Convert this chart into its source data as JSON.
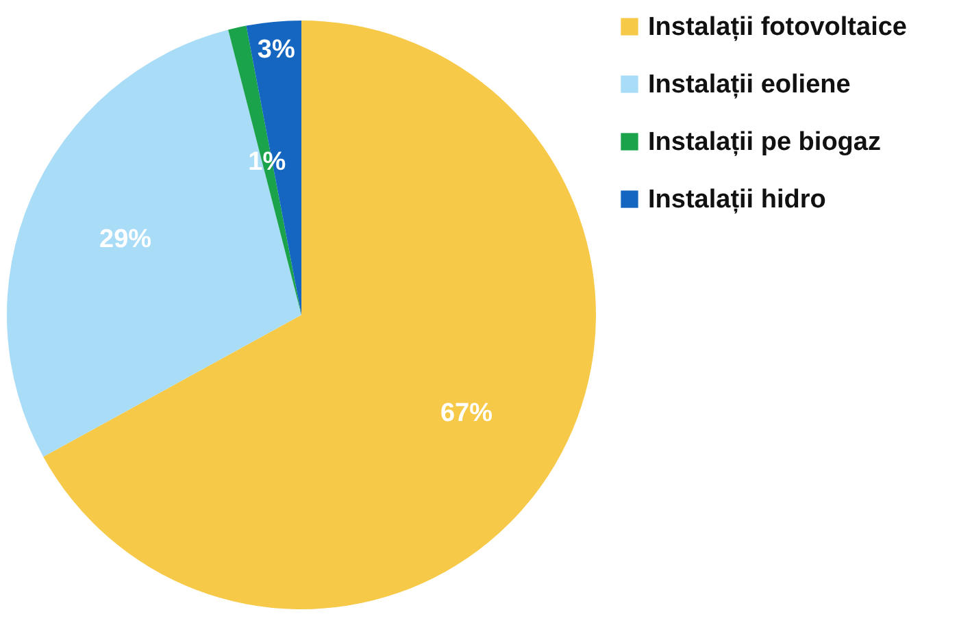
{
  "chart_data": {
    "type": "pie",
    "categories": [
      "Instalații fotovoltaice",
      "Instalații eoliene",
      "Instalații pe biogaz",
      "Instalații hidro"
    ],
    "values": [
      67,
      29,
      1,
      3
    ],
    "value_labels": [
      "67%",
      "29%",
      "1%",
      "3%"
    ],
    "colors": [
      "#f7c948",
      "#a9dcf6",
      "#1aa34a",
      "#1566c0"
    ],
    "legend": "right"
  }
}
